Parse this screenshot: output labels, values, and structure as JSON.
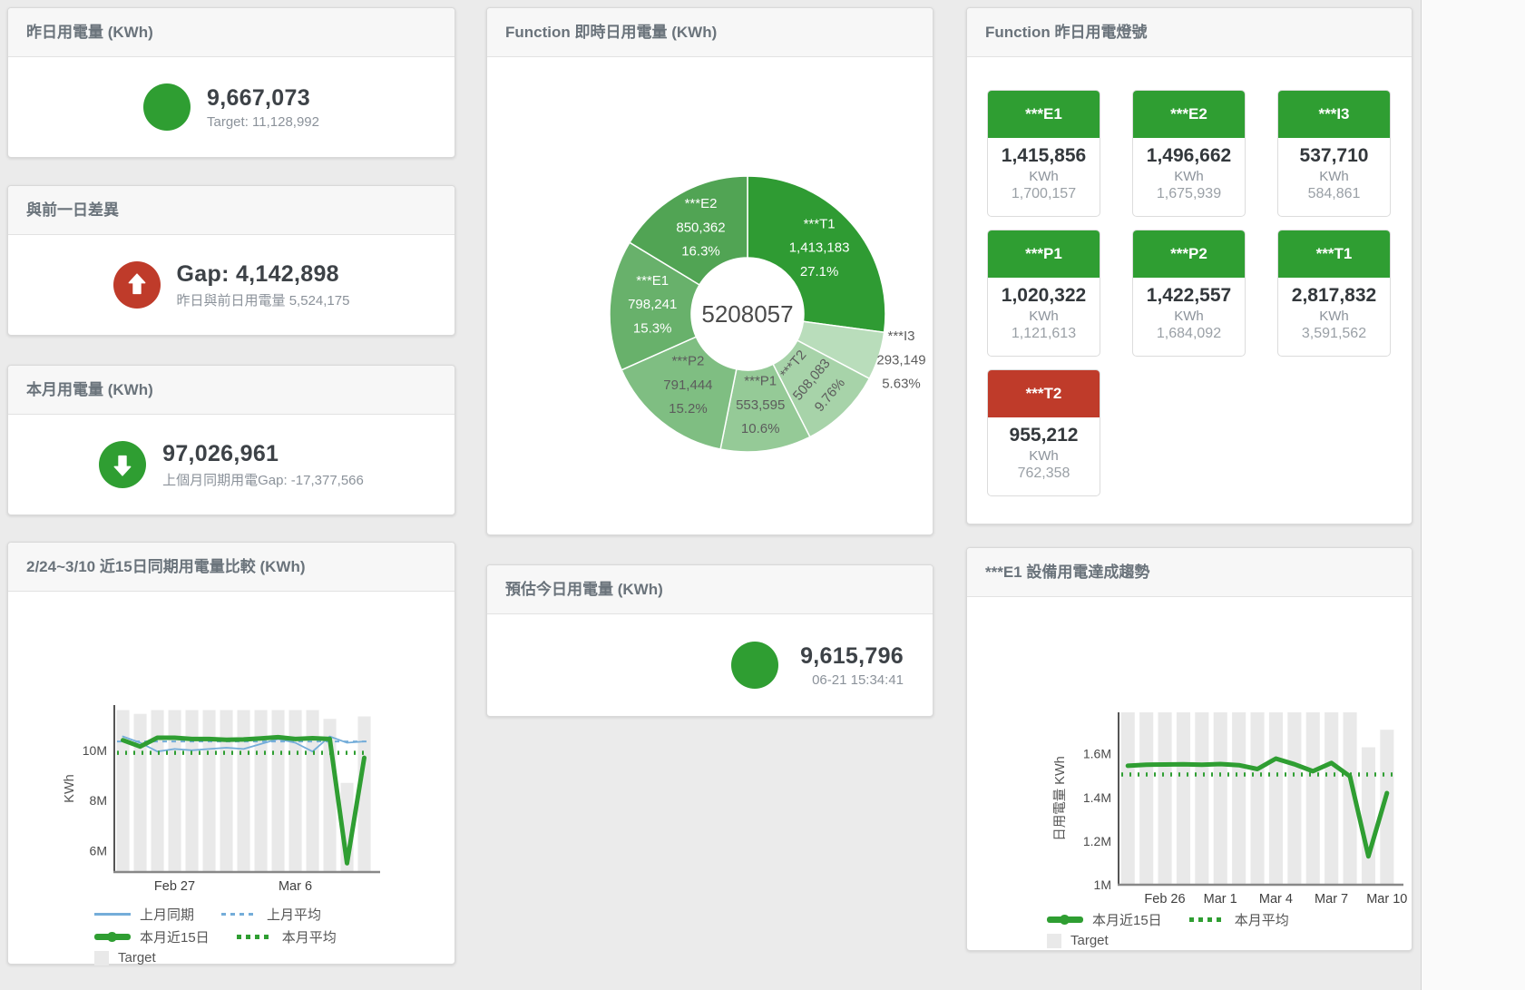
{
  "page": {
    "bg": "#ebebeb",
    "accent_green": "#2f9e32",
    "accent_red": "#bf3b2a"
  },
  "kpi_cards": [
    {
      "title": "昨日用電量 (KWh)",
      "icon": "circle",
      "icon_color": "#2f9e32",
      "value": "9,667,073",
      "subtitle": "Target: 11,128,992"
    },
    {
      "title": "與前一日差異",
      "icon": "arrow-up",
      "icon_color": "#bf3b2a",
      "value": "Gap: 4,142,898",
      "subtitle": "昨日與前日用電量 5,524,175"
    },
    {
      "title": "本月用電量 (KWh)",
      "icon": "arrow-down",
      "icon_color": "#2f9e32",
      "value": "97,026,961",
      "subtitle": "上個月同期用電Gap: -17,377,566"
    },
    {
      "title": "預估今日用電量 (KWh)",
      "icon": "circle",
      "icon_color": "#2f9e32",
      "value": "9,615,796",
      "subtitle": "06-21 15:34:41"
    }
  ],
  "lights_card": {
    "title": "Function 昨日用電燈號",
    "tiles": [
      {
        "label": "***E1",
        "value": "1,415,856",
        "unit": "KWh",
        "target": "1,700,157",
        "status_color": "#2f9e32"
      },
      {
        "label": "***E2",
        "value": "1,496,662",
        "unit": "KWh",
        "target": "1,675,939",
        "status_color": "#2f9e32"
      },
      {
        "label": "***I3",
        "value": "537,710",
        "unit": "KWh",
        "target": "584,861",
        "status_color": "#2f9e32"
      },
      {
        "label": "***P1",
        "value": "1,020,322",
        "unit": "KWh",
        "target": "1,121,613",
        "status_color": "#2f9e32"
      },
      {
        "label": "***P2",
        "value": "1,422,557",
        "unit": "KWh",
        "target": "1,684,092",
        "status_color": "#2f9e32"
      },
      {
        "label": "***T1",
        "value": "2,817,832",
        "unit": "KWh",
        "target": "3,591,562",
        "status_color": "#2f9e32"
      },
      {
        "label": "***T2",
        "value": "955,212",
        "unit": "KWh",
        "target": "762,358",
        "status_color": "#bf3b2a"
      }
    ]
  },
  "chart_data": [
    {
      "type": "pie",
      "title": "Function 即時日用電量 (KWh)",
      "center_total": "5208057",
      "slices": [
        {
          "label": "***T1",
          "value": 1413183,
          "value_str": "1,413,183",
          "pct": "27.1%",
          "color": "#2f9b33",
          "text_color": "#ffffff"
        },
        {
          "label": "***I3",
          "value": 293149,
          "value_str": "293,149",
          "pct": "5.63%",
          "color": "#b9ddbb",
          "text_color": "#5c5c5c",
          "label_outside": true
        },
        {
          "label": "***T2",
          "value": 508083,
          "value_str": "508,083",
          "pct": "9.76%",
          "color": "#a7d3a9",
          "text_color": "#5c5c5c",
          "label_rotate": -50
        },
        {
          "label": "***P1",
          "value": 553595,
          "value_str": "553,595",
          "pct": "10.6%",
          "color": "#95ca97",
          "text_color": "#5c5c5c"
        },
        {
          "label": "***P2",
          "value": 791444,
          "value_str": "791,444",
          "pct": "15.2%",
          "color": "#7fbe82",
          "text_color": "#5c5c5c"
        },
        {
          "label": "***E1",
          "value": 798241,
          "value_str": "798,241",
          "pct": "15.3%",
          "color": "#68b16b",
          "text_color": "#ffffff"
        },
        {
          "label": "***E2",
          "value": 850362,
          "value_str": "850,362",
          "pct": "16.3%",
          "color": "#51a454",
          "text_color": "#ffffff"
        }
      ]
    },
    {
      "type": "line",
      "title": "2/24~3/10 近15日同期用電量比較 (KWh)",
      "ylabel": "KWh",
      "ylim": [
        5150000,
        11800000
      ],
      "yticks": [
        {
          "v": 6000000,
          "label": "6M"
        },
        {
          "v": 8000000,
          "label": "8M"
        },
        {
          "v": 10000000,
          "label": "10M"
        }
      ],
      "x_count": 15,
      "x_ticks": [
        {
          "i": 3,
          "label": "Feb 27"
        },
        {
          "i": 10,
          "label": "Mar 6"
        }
      ],
      "bar_series": {
        "name": "Target",
        "color": "#e9e9e9",
        "values": [
          11600000,
          11450000,
          11600000,
          11600000,
          11600000,
          11600000,
          11600000,
          11600000,
          11600000,
          11600000,
          11600000,
          11600000,
          11250000,
          8700000,
          11350000
        ]
      },
      "line_series": [
        {
          "name": "上月同期",
          "color": "#74add9",
          "width": 1.8,
          "dash": "",
          "values": [
            10550000,
            10300000,
            9950000,
            10050000,
            10000000,
            10050000,
            10100000,
            10050000,
            10250000,
            10450000,
            10300000,
            9950000,
            10550000,
            10300000,
            10350000
          ]
        },
        {
          "name": "上月平均",
          "color": "#74add9",
          "width": 2,
          "dash": "5 5",
          "values": 10350000
        },
        {
          "name": "本月近15日",
          "color": "#2f9e32",
          "width": 5,
          "dash": "",
          "values": [
            10400000,
            10150000,
            10500000,
            10500000,
            10450000,
            10450000,
            10420000,
            10430000,
            10470000,
            10520000,
            10450000,
            10480000,
            10450000,
            5500000,
            9700000
          ]
        },
        {
          "name": "本月平均",
          "color": "#2f9e32",
          "width": 4.5,
          "dash": "2 7",
          "values": 9900000
        }
      ],
      "legend_rows": [
        [
          {
            "label": "上月同期",
            "swatch": "line",
            "color": "#74add9"
          },
          {
            "label": "上月平均",
            "swatch": "dash",
            "color": "#74add9"
          }
        ],
        [
          {
            "label": "本月近15日",
            "swatch": "thickline",
            "color": "#2f9e32"
          },
          {
            "label": "本月平均",
            "swatch": "dots",
            "color": "#2f9e32"
          }
        ],
        [
          {
            "label": "Target",
            "swatch": "square",
            "color": "#e9e9e9"
          }
        ]
      ]
    },
    {
      "type": "line",
      "title": "***E1 設備用電達成趨勢",
      "ylabel": "日用電量 KWh",
      "ylim": [
        1000000,
        1790000
      ],
      "yticks": [
        {
          "v": 1000000,
          "label": "1M"
        },
        {
          "v": 1200000,
          "label": "1.2M"
        },
        {
          "v": 1400000,
          "label": "1.4M"
        },
        {
          "v": 1600000,
          "label": "1.6M"
        }
      ],
      "x_count": 15,
      "x_ticks": [
        {
          "i": 2,
          "label": "Feb 26"
        },
        {
          "i": 5,
          "label": "Mar 1"
        },
        {
          "i": 8,
          "label": "Mar 4"
        },
        {
          "i": 11,
          "label": "Mar 7"
        },
        {
          "i": 14,
          "label": "Mar 10"
        }
      ],
      "bar_series": {
        "name": "Target",
        "color": "#e9e9e9",
        "values": [
          1790000,
          1790000,
          1790000,
          1790000,
          1790000,
          1790000,
          1790000,
          1790000,
          1790000,
          1790000,
          1790000,
          1790000,
          1790000,
          1630000,
          1710000
        ]
      },
      "line_series": [
        {
          "name": "本月近15日",
          "color": "#2f9e32",
          "width": 5,
          "dash": "",
          "values": [
            1545000,
            1550000,
            1551000,
            1552000,
            1550000,
            1553000,
            1548000,
            1530000,
            1578000,
            1552000,
            1520000,
            1558000,
            1497000,
            1130000,
            1420000
          ]
        },
        {
          "name": "本月平均",
          "color": "#2f9e32",
          "width": 4.5,
          "dash": "2 7",
          "values": 1505000
        }
      ],
      "legend_rows": [
        [
          {
            "label": "本月近15日",
            "swatch": "thickline",
            "color": "#2f9e32"
          },
          {
            "label": "本月平均",
            "swatch": "dots",
            "color": "#2f9e32"
          }
        ],
        [
          {
            "label": "Target",
            "swatch": "square",
            "color": "#e9e9e9"
          }
        ]
      ]
    }
  ]
}
